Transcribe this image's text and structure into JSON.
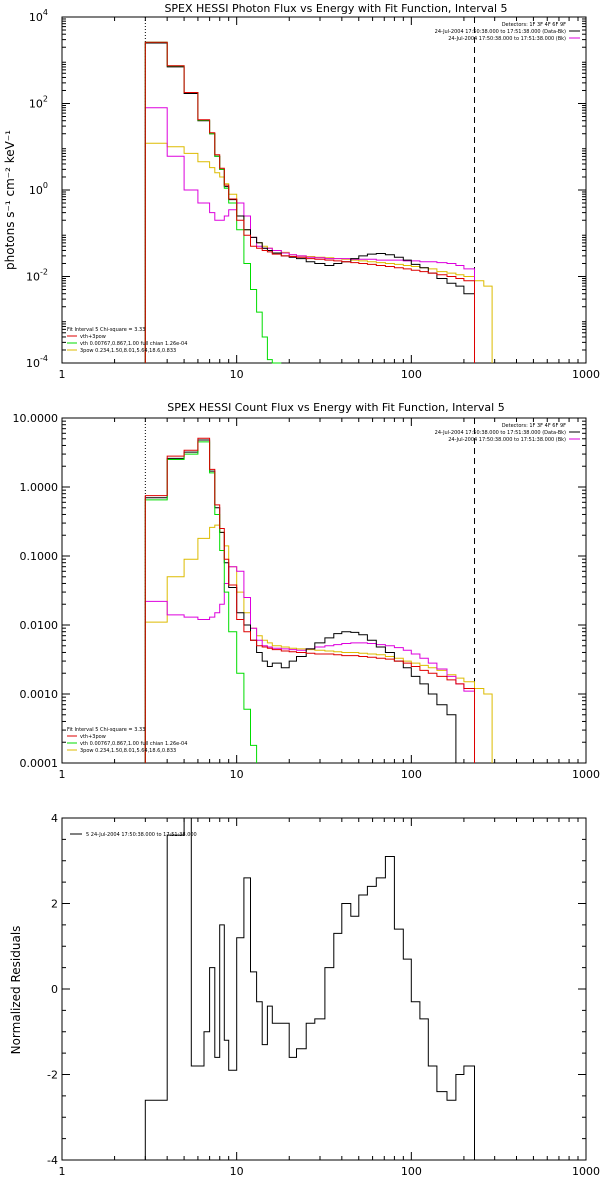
{
  "colors": {
    "data": "#000000",
    "total": "#dd0000",
    "thermal": "#00dd00",
    "powerlaw": "#ddbb00",
    "background": "#dd00dd"
  },
  "chart_data": [
    {
      "type": "line",
      "title": "SPEX HESSI Photon Flux vs Energy with Fit Function, Interval 5",
      "ylabel": "photons s⁻¹ cm⁻² keV⁻¹",
      "xlabel": "",
      "xscale": "log",
      "yscale": "log",
      "xlim": [
        1,
        1000
      ],
      "ylim": [
        0.0001,
        10000
      ],
      "xticks": [
        "1",
        "10",
        "100",
        "1000"
      ],
      "yticks": [
        {
          "v": 0.0001,
          "t": "10"
        },
        {
          "v": 0.01,
          "t": "10"
        },
        {
          "v": 1,
          "t": "10"
        },
        {
          "v": 100,
          "t": "10"
        },
        {
          "v": 10000,
          "t": "10"
        }
      ],
      "ytick_exps": [
        "-4",
        "-2",
        "0",
        "2",
        "4"
      ],
      "legend_tr": [
        "Detectors: 1F 3F 4F 6F 9F",
        "24-Jul-2004 17:50:38.000 to 17:51:38.000 (Data-Bk)",
        "24-Jul-2004 17:50:38.000 to 17:51:38.000 (Bk)"
      ],
      "legend_bl": [
        "Fit Interval 5   Chi-square = 3.33",
        "vth+3pow",
        "vth 0.00767,0.867,1.00  full chian 1.26e-04",
        "3pow 0.234,1.50,8.01,5.64,18.6,0.833"
      ],
      "vline_dotted": 3,
      "vline_dashed": 230,
      "edges": [
        3,
        3.5,
        4,
        4.5,
        5,
        5.5,
        6,
        6.5,
        7,
        7.5,
        8,
        8.5,
        9,
        10,
        11,
        12,
        13,
        14,
        15,
        16,
        18,
        20,
        22,
        25,
        28,
        32,
        36,
        40,
        45,
        50,
        56,
        63,
        71,
        80,
        90,
        100,
        112,
        125,
        140,
        160,
        180,
        200,
        230,
        260,
        290
      ],
      "series": [
        {
          "key": "data",
          "values": [
            2500,
            2500,
            700,
            700,
            170,
            170,
            40,
            40,
            20,
            6,
            3,
            1.2,
            0.6,
            0.25,
            0.12,
            0.08,
            0.06,
            0.045,
            0.04,
            0.035,
            0.03,
            0.028,
            0.026,
            0.022,
            0.02,
            0.018,
            0.02,
            0.022,
            0.026,
            0.03,
            0.033,
            0.034,
            0.032,
            0.028,
            0.024,
            0.019,
            0.016,
            0.012,
            0.009,
            0.007,
            0.006,
            0.004,
            null,
            null
          ]
        },
        {
          "key": "total",
          "values": [
            2600,
            2600,
            750,
            750,
            180,
            180,
            42,
            42,
            21,
            6.5,
            3.2,
            1.3,
            0.62,
            0.2,
            0.09,
            0.05,
            0.045,
            0.04,
            0.037,
            0.033,
            0.03,
            0.029,
            0.028,
            0.026,
            0.025,
            0.024,
            0.023,
            0.022,
            0.021,
            0.02,
            0.019,
            0.018,
            0.017,
            0.016,
            0.015,
            0.014,
            0.013,
            0.012,
            0.011,
            0.01,
            0.009,
            0.008,
            null,
            null
          ]
        },
        {
          "key": "thermal",
          "values": [
            2600,
            2600,
            740,
            740,
            180,
            180,
            41,
            41,
            20,
            6,
            3,
            1.1,
            0.5,
            0.12,
            0.02,
            0.005,
            0.0015,
            0.0004,
            0.00012,
            3e-05,
            null,
            null,
            null,
            null,
            null,
            null,
            null,
            null,
            null,
            null,
            null,
            null,
            null,
            null,
            null,
            null,
            null,
            null,
            null,
            null,
            null,
            null,
            null,
            null
          ]
        },
        {
          "key": "powerlaw",
          "values": [
            12,
            12,
            10,
            10,
            7,
            7,
            4.5,
            4.5,
            3.3,
            2.5,
            2,
            1.4,
            0.8,
            0.25,
            0.12,
            0.08,
            0.06,
            0.05,
            0.045,
            0.04,
            0.036,
            0.032,
            0.03,
            0.029,
            0.028,
            0.027,
            0.026,
            0.025,
            0.024,
            0.023,
            0.022,
            0.021,
            0.02,
            0.019,
            0.018,
            0.017,
            0.016,
            0.015,
            0.013,
            0.012,
            0.011,
            0.01,
            0.008,
            0.006
          ]
        },
        {
          "key": "background",
          "values": [
            80,
            80,
            6,
            6,
            1,
            1,
            0.5,
            0.5,
            0.3,
            0.2,
            0.2,
            0.25,
            0.35,
            0.5,
            0.25,
            0.08,
            0.05,
            0.045,
            0.045,
            0.04,
            0.035,
            0.032,
            0.03,
            0.028,
            0.027,
            0.026,
            0.026,
            0.026,
            0.025,
            0.025,
            0.025,
            0.024,
            0.024,
            0.024,
            0.023,
            0.023,
            0.022,
            0.022,
            0.021,
            0.02,
            0.018,
            0.015,
            null,
            null
          ]
        }
      ]
    },
    {
      "type": "line",
      "title": "SPEX HESSI Count Flux vs Energy with Fit Function, Interval 5",
      "ylabel": "",
      "xlabel": "",
      "xscale": "log",
      "yscale": "log",
      "xlim": [
        1,
        1000
      ],
      "ylim": [
        0.0001,
        10
      ],
      "xticks": [
        "1",
        "10",
        "100",
        "1000"
      ],
      "yticks": [
        {
          "v": 0.0001,
          "t": "0.0001"
        },
        {
          "v": 0.001,
          "t": "0.0010"
        },
        {
          "v": 0.01,
          "t": "0.0100"
        },
        {
          "v": 0.1,
          "t": "0.1000"
        },
        {
          "v": 1,
          "t": "1.0000"
        },
        {
          "v": 10,
          "t": "10.0000"
        }
      ],
      "legend_tr": [
        "Detectors: 1F 3F 4F 6F 9F",
        "24-Jul-2004 17:50:38.000 to 17:51:38.000 (Data-Bk)",
        "24-Jul-2004 17:50:38.000 to 17:51:38.000 (Bk)"
      ],
      "legend_bl": [
        "Fit Interval 5   Chi-square = 3.33",
        "vth+3pow",
        "vth 0.00767,0.867,1.00  full chian 1.26e-04",
        "3pow 0.234,1.50,8.01,5.64,18.6,0.833"
      ],
      "vline_dotted": 3,
      "vline_dashed": 230,
      "edges": [
        3,
        3.5,
        4,
        4.5,
        5,
        5.5,
        6,
        6.5,
        7,
        7.5,
        8,
        8.5,
        9,
        10,
        11,
        12,
        13,
        14,
        15,
        16,
        18,
        20,
        22,
        25,
        28,
        32,
        36,
        40,
        45,
        50,
        56,
        63,
        71,
        80,
        90,
        100,
        112,
        125,
        140,
        160,
        180,
        200,
        230,
        260,
        290
      ],
      "series": [
        {
          "key": "data",
          "values": [
            0.7,
            0.7,
            2.6,
            2.6,
            3.2,
            3.2,
            4.8,
            4.8,
            1.7,
            0.5,
            0.22,
            0.08,
            0.035,
            0.015,
            0.01,
            0.006,
            0.004,
            0.003,
            0.0025,
            0.0028,
            0.0024,
            0.003,
            0.0035,
            0.0045,
            0.0055,
            0.0065,
            0.0075,
            0.008,
            0.0078,
            0.0072,
            0.006,
            0.0048,
            0.004,
            0.003,
            0.0024,
            0.0018,
            0.0014,
            0.001,
            0.0007,
            0.0005,
            null,
            null,
            null,
            null
          ]
        },
        {
          "key": "total",
          "values": [
            0.75,
            0.75,
            2.8,
            2.8,
            3.4,
            3.4,
            5.1,
            5.1,
            1.8,
            0.55,
            0.25,
            0.09,
            0.038,
            0.012,
            0.008,
            0.006,
            0.005,
            0.0048,
            0.0046,
            0.0044,
            0.0042,
            0.0041,
            0.004,
            0.0039,
            0.0038,
            0.0038,
            0.0037,
            0.0036,
            0.0036,
            0.0035,
            0.0034,
            0.0033,
            0.0032,
            0.003,
            0.0028,
            0.0025,
            0.0022,
            0.002,
            0.0018,
            0.0016,
            0.0014,
            0.0012,
            null,
            null
          ]
        },
        {
          "key": "thermal",
          "values": [
            0.65,
            0.65,
            2.5,
            2.5,
            3,
            3,
            4.5,
            4.5,
            1.6,
            0.4,
            0.12,
            0.03,
            0.008,
            0.002,
            0.0006,
            0.00018,
            null,
            null,
            null,
            null,
            null,
            null,
            null,
            null,
            null,
            null,
            null,
            null,
            null,
            null,
            null,
            null,
            null,
            null,
            null,
            null,
            null,
            null,
            null,
            null,
            null,
            null,
            null,
            null
          ]
        },
        {
          "key": "powerlaw",
          "values": [
            0.011,
            0.011,
            0.05,
            0.05,
            0.09,
            0.09,
            0.18,
            0.18,
            0.26,
            0.28,
            0.22,
            0.14,
            0.07,
            0.03,
            0.015,
            0.009,
            0.007,
            0.006,
            0.0055,
            0.005,
            0.0048,
            0.0046,
            0.0045,
            0.0044,
            0.0043,
            0.0042,
            0.0041,
            0.004,
            0.004,
            0.0039,
            0.0038,
            0.0037,
            0.0035,
            0.0033,
            0.003,
            0.0028,
            0.0026,
            0.0024,
            0.0022,
            0.0019,
            0.0017,
            0.0015,
            0.0012,
            0.001
          ]
        },
        {
          "key": "background",
          "values": [
            0.022,
            0.022,
            0.014,
            0.014,
            0.013,
            0.013,
            0.012,
            0.012,
            0.013,
            0.015,
            0.02,
            0.04,
            0.07,
            0.06,
            0.025,
            0.009,
            0.006,
            0.005,
            0.0048,
            0.0046,
            0.0045,
            0.0044,
            0.0043,
            0.0045,
            0.0048,
            0.005,
            0.0052,
            0.0054,
            0.0055,
            0.0055,
            0.0054,
            0.0052,
            0.005,
            0.0047,
            0.0043,
            0.0038,
            0.0033,
            0.0028,
            0.0023,
            0.0018,
            0.0014,
            0.0011,
            null,
            null
          ]
        }
      ]
    },
    {
      "type": "line",
      "title": "",
      "ylabel": "Normalized Residuals",
      "xlabel": "",
      "xscale": "log",
      "yscale": "linear",
      "xlim": [
        1,
        1000
      ],
      "ylim": [
        -4,
        4
      ],
      "xticks": [
        "1",
        "10",
        "100",
        "1000"
      ],
      "yticks": [
        {
          "v": -4,
          "t": "-4"
        },
        {
          "v": -2,
          "t": "-2"
        },
        {
          "v": 0,
          "t": "0"
        },
        {
          "v": 2,
          "t": "2"
        },
        {
          "v": 4,
          "t": "4"
        }
      ],
      "legend_tl": "5  24-Jul-2004 17:50:38.000 to 17:51:38.000",
      "edges": [
        3,
        3.5,
        4,
        4.5,
        5,
        5.5,
        6,
        6.5,
        7,
        7.5,
        8,
        8.5,
        9,
        10,
        11,
        12,
        13,
        14,
        15,
        16,
        18,
        20,
        22,
        25,
        28,
        32,
        36,
        40,
        45,
        50,
        56,
        63,
        71,
        80,
        90,
        100,
        112,
        125,
        140,
        160,
        180,
        200,
        230
      ],
      "series": [
        {
          "key": "data",
          "values": [
            -2.6,
            -2.6,
            3.6,
            3.6,
            4.0,
            -1.8,
            -1.8,
            -1.0,
            0.5,
            -1.6,
            1.5,
            -1.2,
            -1.9,
            1.2,
            2.6,
            0.4,
            -0.3,
            -1.3,
            -0.4,
            -0.8,
            -0.8,
            -1.6,
            -1.4,
            -0.8,
            -0.7,
            0.5,
            1.3,
            2.0,
            1.7,
            2.2,
            2.4,
            2.6,
            3.1,
            1.4,
            0.7,
            -0.3,
            -0.7,
            -1.8,
            -2.4,
            -2.6,
            -2.0,
            -1.8
          ]
        }
      ]
    }
  ]
}
